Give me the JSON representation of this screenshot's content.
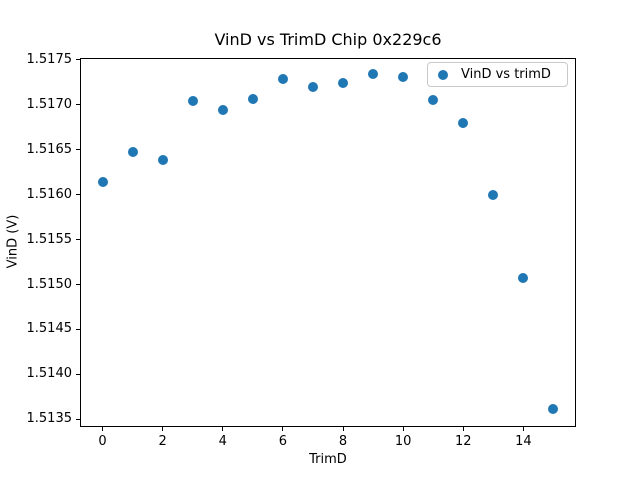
{
  "chart_data": {
    "type": "scatter",
    "title": "VinD vs TrimD Chip 0x229c6",
    "xlabel": "TrimD",
    "ylabel": "VinD (V)",
    "legend": [
      {
        "label": "VinD vs trimD",
        "marker": "circle-icon",
        "color": "#1f77b4"
      }
    ],
    "legend_position": "upper right",
    "marker_color": "#1f77b4",
    "background_color": "#ffffff",
    "grid": false,
    "x": [
      0,
      1,
      2,
      3,
      4,
      5,
      6,
      7,
      8,
      9,
      10,
      11,
      12,
      13,
      14,
      15
    ],
    "y": [
      1.51614,
      1.51648,
      1.51638,
      1.51704,
      1.51694,
      1.51706,
      1.51729,
      1.5172,
      1.51724,
      1.51734,
      1.51731,
      1.51705,
      1.5168,
      1.516,
      1.51507,
      1.51362
    ],
    "xlim": [
      -0.75,
      15.75
    ],
    "ylim": [
      1.513412,
      1.517525
    ],
    "xticks": [
      0,
      2,
      4,
      6,
      8,
      10,
      12,
      14
    ],
    "xtick_labels": [
      "0",
      "2",
      "4",
      "6",
      "8",
      "10",
      "12",
      "14"
    ],
    "yticks": [
      1.5175,
      1.517,
      1.5165,
      1.516,
      1.5155,
      1.515,
      1.5145,
      1.514,
      1.5135
    ],
    "ytick_labels": [
      "1.5175",
      "1.5170",
      "1.5165",
      "1.5160",
      "1.5155",
      "1.5150",
      "1.5145",
      "1.5140",
      "1.5135"
    ]
  }
}
